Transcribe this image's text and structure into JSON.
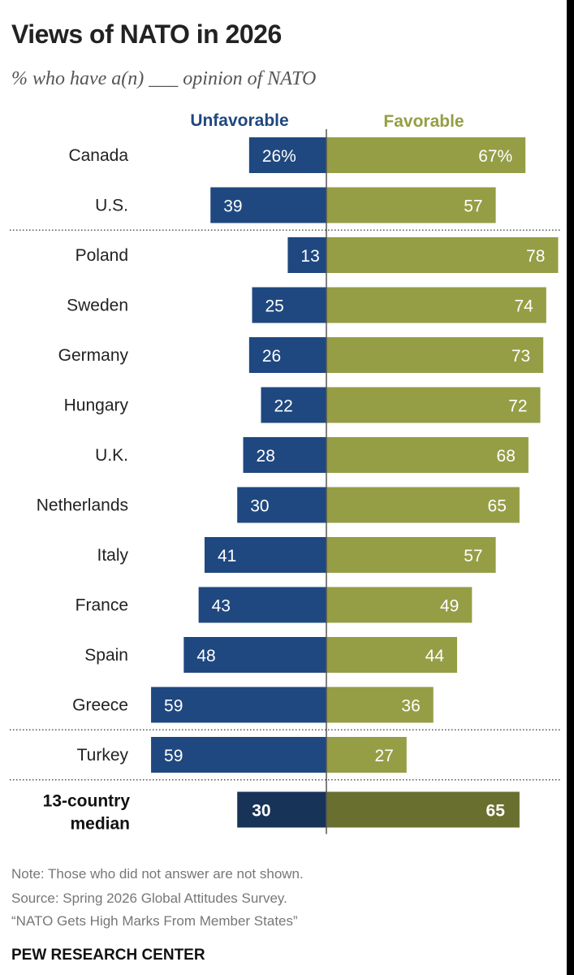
{
  "title": "Views of NATO in 2026",
  "subtitle": "% who have a(n) ___ opinion of NATO",
  "colors": {
    "unfavorable": "#1f4880",
    "favorable": "#959e45",
    "median_unfavorable": "#183358",
    "median_favorable": "#69702f"
  },
  "chart_data": {
    "type": "bar",
    "orientation": "diverging-horizontal",
    "categories": [
      "Canada",
      "U.S.",
      "Poland",
      "Sweden",
      "Germany",
      "Hungary",
      "U.K.",
      "Netherlands",
      "Italy",
      "France",
      "Spain",
      "Greece",
      "Turkey"
    ],
    "series": [
      {
        "name": "Unfavorable",
        "values": [
          26,
          39,
          13,
          25,
          26,
          22,
          28,
          30,
          41,
          43,
          48,
          59,
          59
        ]
      },
      {
        "name": "Favorable",
        "values": [
          67,
          57,
          78,
          74,
          73,
          72,
          68,
          65,
          57,
          49,
          44,
          36,
          27
        ]
      }
    ],
    "value_labels": {
      "unfavorable": [
        "26%",
        "39",
        "13",
        "25",
        "26",
        "22",
        "28",
        "30",
        "41",
        "43",
        "48",
        "59",
        "59"
      ],
      "favorable": [
        "67%",
        "57",
        "78",
        "74",
        "73",
        "72",
        "68",
        "65",
        "57",
        "49",
        "44",
        "36",
        "27"
      ]
    },
    "median": {
      "label": [
        "13-country",
        "median"
      ],
      "unfavorable": 30,
      "favorable": 65,
      "unfavorable_label": "30",
      "favorable_label": "65"
    },
    "separator_after": [
      "U.S.",
      "Greece",
      "Turkey"
    ],
    "legend_placement": "top"
  },
  "footer": {
    "note": "Note: Those who did not answer are not shown.",
    "source": "Source: Spring 2026 Global Attitudes Survey.",
    "report": "“NATO Gets High Marks From Member States”",
    "brand": "PEW RESEARCH CENTER"
  }
}
